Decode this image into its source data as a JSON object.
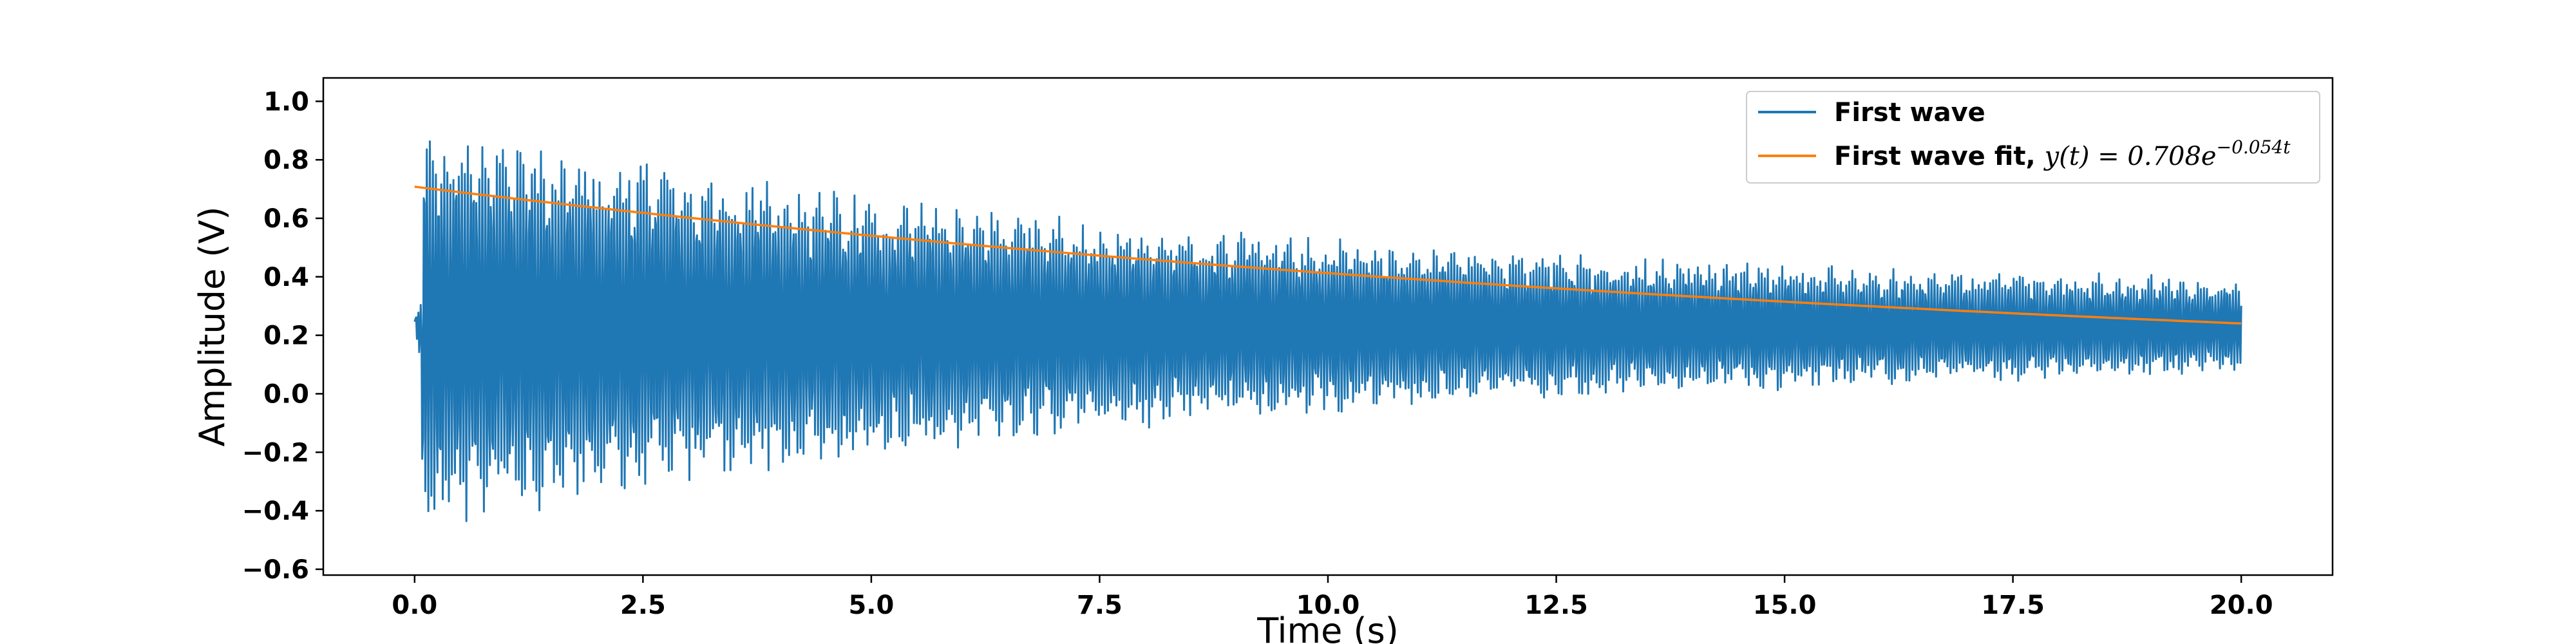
{
  "chart_data": {
    "type": "line",
    "xlabel": "Time (s)",
    "ylabel": "Amplitude (V)",
    "xlim": [
      -1.0,
      21.0
    ],
    "ylim": [
      -0.62,
      1.08
    ],
    "xticks": [
      0.0,
      2.5,
      5.0,
      7.5,
      10.0,
      12.5,
      15.0,
      17.5,
      20.0
    ],
    "xtick_labels": [
      "0.0",
      "2.5",
      "5.0",
      "7.5",
      "10.0",
      "12.5",
      "15.0",
      "17.5",
      "20.0"
    ],
    "yticks": [
      -0.6,
      -0.4,
      -0.2,
      0.0,
      0.2,
      0.4,
      0.6,
      0.8,
      1.0
    ],
    "ytick_labels": [
      "−0.6",
      "−0.4",
      "−0.2",
      "0.0",
      "0.2",
      "0.4",
      "0.6",
      "0.8",
      "1.0"
    ],
    "grid": false,
    "legend_position": "top-right",
    "series": [
      {
        "name": "First wave",
        "color": "#1f77b4",
        "kind": "damped-oscillation",
        "t_range": [
          0.0,
          20.0
        ],
        "offset": 0.23,
        "initial_amplitude": 0.72,
        "decay_rate": 0.115,
        "noise_floor": 0.1,
        "oscillation_frequency_hz": 6.0,
        "max": 1.0,
        "min": -0.54
      },
      {
        "name": "First wave fit, ",
        "formula_prefix": "y(t) = 0.708e",
        "formula_exponent": "−0.054t",
        "color": "#ff7f0e",
        "kind": "exponential",
        "a": 0.708,
        "b": -0.054,
        "t_range": [
          0.0,
          20.0
        ]
      }
    ]
  }
}
